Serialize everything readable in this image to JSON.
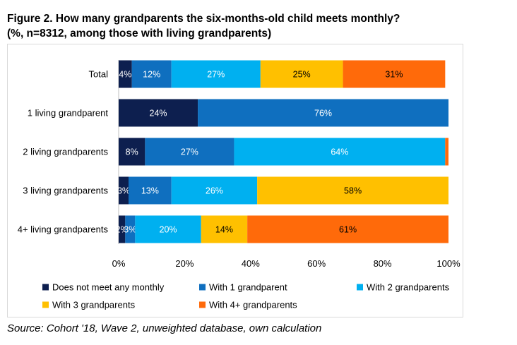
{
  "title_line1": "Figure 2. How many grandparents the six-months-old child meets monthly?",
  "title_line2": "(%, n=8312, among those with living grandparents)",
  "source": "Source: Cohort '18, Wave 2, unweighted database, own calculation",
  "chart_data": {
    "type": "bar",
    "orientation": "horizontal",
    "stacked": true,
    "categories": [
      "Total",
      "1 living grandparent",
      "2 living grandparents",
      "3 living grandparents",
      "4+ living grandparents"
    ],
    "series": [
      {
        "name": "Does not meet any monthly",
        "color": "#0d1f4f",
        "values": [
          4,
          24,
          8,
          3,
          2
        ],
        "labels": [
          "4%",
          "24%",
          "8%",
          "3%",
          "2%"
        ]
      },
      {
        "name": "With 1 grandparent",
        "color": "#0f6fbf",
        "values": [
          12,
          76,
          27,
          13,
          3
        ],
        "labels": [
          "12%",
          "76%",
          "27%",
          "13%",
          "3%"
        ]
      },
      {
        "name": "With 2 grandparents",
        "color": "#00b0f0",
        "values": [
          27,
          0,
          64,
          26,
          20
        ],
        "labels": [
          "27%",
          "",
          "64%",
          "26%",
          "20%"
        ]
      },
      {
        "name": "With 3 grandparents",
        "color": "#ffc000",
        "values": [
          25,
          0,
          0,
          58,
          14
        ],
        "labels": [
          "25%",
          "",
          "",
          "58%",
          "14%"
        ]
      },
      {
        "name": "With 4+ grandparents",
        "color": "#ff6a0a",
        "values": [
          31,
          0,
          1,
          0,
          61
        ],
        "labels": [
          "31%",
          "",
          "",
          "",
          "61%"
        ]
      }
    ],
    "x_ticks": [
      "0%",
      "20%",
      "40%",
      "60%",
      "80%",
      "100%"
    ],
    "xlim": [
      0,
      100
    ],
    "grid": false,
    "legend_position": "bottom"
  }
}
